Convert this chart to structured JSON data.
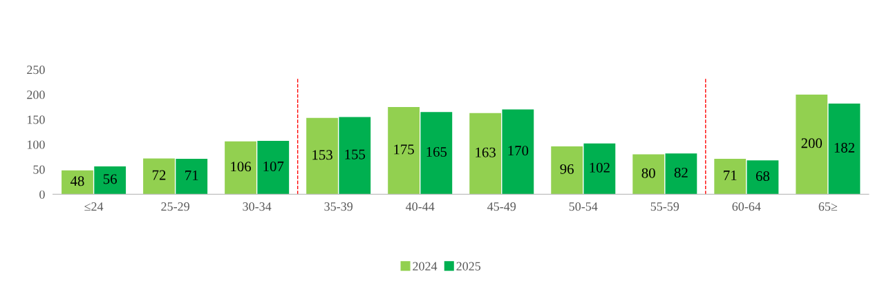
{
  "chart_data": {
    "type": "bar",
    "categories": [
      "≤24",
      "25-29",
      "30-34",
      "35-39",
      "40-44",
      "45-49",
      "50-54",
      "55-59",
      "60-64",
      "65≥"
    ],
    "series": [
      {
        "name": "2024",
        "color": "#92d050",
        "values": [
          48,
          72,
          106,
          153,
          175,
          163,
          96,
          80,
          71,
          200
        ]
      },
      {
        "name": "2025",
        "color": "#00b050",
        "values": [
          56,
          71,
          107,
          155,
          165,
          170,
          102,
          82,
          68,
          182
        ]
      }
    ],
    "ylim": [
      0,
      250
    ],
    "yticks": [
      0,
      50,
      100,
      150,
      200,
      250
    ],
    "data_labels": true,
    "grid": false,
    "legend": "bottom"
  }
}
